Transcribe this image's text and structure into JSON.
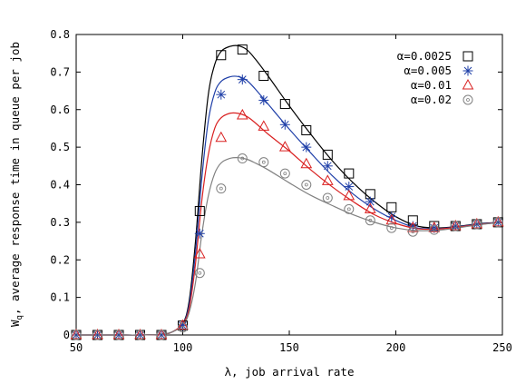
{
  "chart_data": {
    "type": "line",
    "xlabel": "λ, job arrival rate",
    "ylabel": "W_q, average response time in queue per job",
    "ylabel_main": "W",
    "ylabel_sub": "q",
    "ylabel_rest": ", average response time in queue per job",
    "xlim": [
      50,
      250
    ],
    "ylim": [
      0,
      0.8
    ],
    "xticks": [
      50,
      100,
      150,
      200,
      250
    ],
    "yticks": [
      0,
      0.1,
      0.2,
      0.3,
      0.4,
      0.5,
      0.6,
      0.7,
      0.8
    ],
    "xtick_labels": [
      "50",
      "100",
      "150",
      "200",
      "250"
    ],
    "ytick_labels": [
      "0",
      "0.1",
      "0.2",
      "0.3",
      "0.4",
      "0.5",
      "0.6",
      "0.7",
      "0.8"
    ],
    "grid": false,
    "legend_position": "top-right",
    "series": [
      {
        "name": "α=0.0025",
        "color": "#000000",
        "marker": "square",
        "x": [
          50,
          60,
          70,
          80,
          90,
          100,
          108,
          118,
          128,
          138,
          148,
          158,
          168,
          178,
          188,
          198,
          208,
          218,
          228,
          238,
          248
        ],
        "y": [
          0,
          0,
          0,
          0,
          0,
          0.025,
          0.33,
          0.745,
          0.76,
          0.69,
          0.615,
          0.545,
          0.48,
          0.43,
          0.375,
          0.34,
          0.305,
          0.29,
          0.29,
          0.295,
          0.3
        ],
        "curve_x": [
          50,
          60,
          70,
          80,
          90,
          95,
          100,
          103,
          106,
          109,
          112,
          115,
          118,
          122,
          126,
          130,
          134,
          140,
          150,
          160,
          170,
          180,
          190,
          200,
          210,
          220,
          230,
          240,
          250
        ],
        "curve_y": [
          0,
          0,
          0,
          0,
          0.002,
          0.008,
          0.03,
          0.09,
          0.25,
          0.47,
          0.64,
          0.72,
          0.755,
          0.768,
          0.77,
          0.76,
          0.735,
          0.69,
          0.61,
          0.535,
          0.465,
          0.405,
          0.355,
          0.315,
          0.29,
          0.285,
          0.29,
          0.297,
          0.3
        ]
      },
      {
        "name": "α=0.005",
        "color": "#1f3fa8",
        "marker": "asterisk",
        "x": [
          50,
          60,
          70,
          80,
          90,
          100,
          108,
          118,
          128,
          138,
          148,
          158,
          168,
          178,
          188,
          198,
          208,
          218,
          228,
          238,
          248
        ],
        "y": [
          0,
          0,
          0,
          0,
          0,
          0.025,
          0.27,
          0.64,
          0.68,
          0.625,
          0.56,
          0.5,
          0.45,
          0.395,
          0.355,
          0.315,
          0.29,
          0.285,
          0.29,
          0.295,
          0.3
        ],
        "curve_x": [
          50,
          60,
          70,
          80,
          90,
          95,
          100,
          103,
          106,
          109,
          112,
          115,
          118,
          122,
          126,
          130,
          134,
          140,
          150,
          160,
          170,
          180,
          190,
          200,
          210,
          220,
          230,
          240,
          250
        ],
        "curve_y": [
          0,
          0,
          0,
          0,
          0.002,
          0.008,
          0.03,
          0.08,
          0.22,
          0.42,
          0.57,
          0.645,
          0.675,
          0.687,
          0.688,
          0.678,
          0.655,
          0.615,
          0.548,
          0.485,
          0.425,
          0.375,
          0.335,
          0.305,
          0.285,
          0.283,
          0.289,
          0.296,
          0.3
        ]
      },
      {
        "name": "α=0.01",
        "color": "#d92020",
        "marker": "triangle",
        "x": [
          50,
          60,
          70,
          80,
          90,
          100,
          108,
          118,
          128,
          138,
          148,
          158,
          168,
          178,
          188,
          198,
          208,
          218,
          228,
          238,
          248
        ],
        "y": [
          0,
          0,
          0,
          0,
          0,
          0.025,
          0.215,
          0.525,
          0.585,
          0.555,
          0.5,
          0.455,
          0.41,
          0.37,
          0.335,
          0.305,
          0.285,
          0.285,
          0.29,
          0.295,
          0.3
        ],
        "curve_x": [
          50,
          60,
          70,
          80,
          90,
          95,
          100,
          103,
          106,
          109,
          112,
          115,
          118,
          122,
          126,
          130,
          134,
          140,
          150,
          160,
          170,
          180,
          190,
          200,
          210,
          220,
          230,
          240,
          250
        ],
        "curve_y": [
          0,
          0,
          0,
          0,
          0.002,
          0.008,
          0.03,
          0.07,
          0.19,
          0.36,
          0.48,
          0.55,
          0.578,
          0.59,
          0.59,
          0.582,
          0.565,
          0.535,
          0.49,
          0.44,
          0.395,
          0.355,
          0.32,
          0.297,
          0.283,
          0.282,
          0.288,
          0.295,
          0.3
        ]
      },
      {
        "name": "α=0.02",
        "color": "#808080",
        "marker": "circle",
        "x": [
          50,
          60,
          70,
          80,
          90,
          100,
          108,
          118,
          128,
          138,
          148,
          158,
          168,
          178,
          188,
          198,
          208,
          218,
          228,
          238,
          248
        ],
        "y": [
          0,
          0,
          0,
          0,
          0,
          0.02,
          0.165,
          0.39,
          0.47,
          0.46,
          0.43,
          0.4,
          0.365,
          0.335,
          0.305,
          0.285,
          0.275,
          0.28,
          0.29,
          0.295,
          0.3
        ],
        "curve_x": [
          50,
          60,
          70,
          80,
          90,
          95,
          100,
          103,
          106,
          109,
          112,
          115,
          118,
          122,
          126,
          130,
          134,
          140,
          150,
          160,
          170,
          180,
          190,
          200,
          210,
          220,
          230,
          240,
          250
        ],
        "curve_y": [
          0,
          0,
          0,
          0,
          0.002,
          0.008,
          0.025,
          0.06,
          0.14,
          0.27,
          0.37,
          0.43,
          0.458,
          0.47,
          0.472,
          0.468,
          0.458,
          0.44,
          0.405,
          0.372,
          0.345,
          0.32,
          0.3,
          0.285,
          0.278,
          0.279,
          0.286,
          0.294,
          0.3
        ]
      }
    ]
  }
}
